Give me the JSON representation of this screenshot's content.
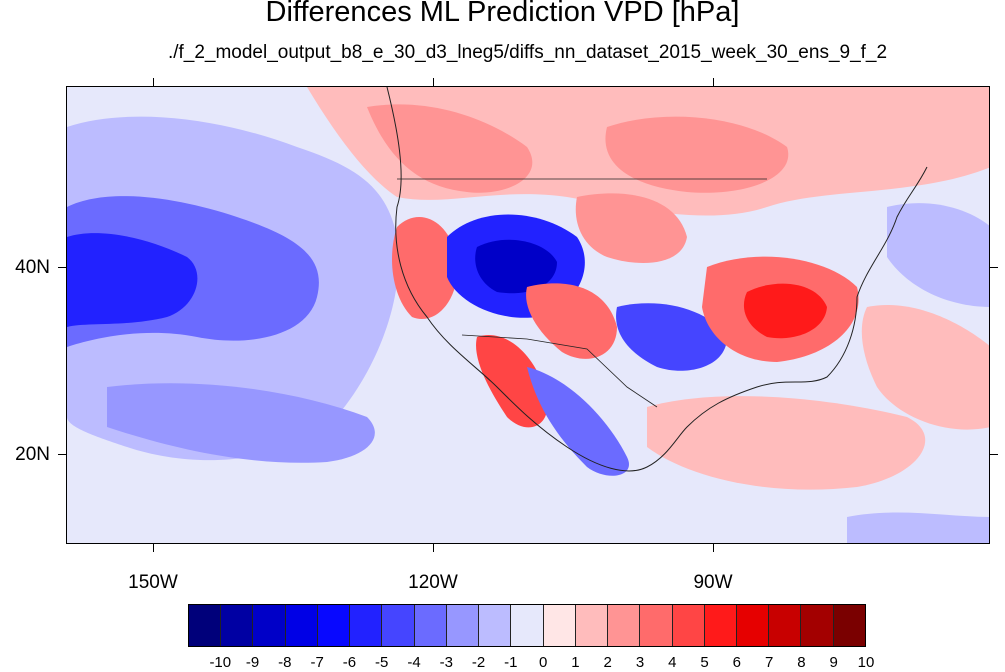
{
  "title": "Differences ML Prediction VPD [hPa]",
  "subtitle": "./f_2_model_output_b8_e_30_d3_lneg5/diffs_nn_dataset_2015_week_30_ens_9_f_2",
  "lat_labels": [
    "40N",
    "20N"
  ],
  "lon_labels": [
    "150W",
    "120W",
    "90W"
  ],
  "colorbar": {
    "labels": [
      "-10",
      "-9",
      "-8",
      "-7",
      "-6",
      "-5",
      "-4",
      "-3",
      "-2",
      "-1",
      "0",
      "1",
      "2",
      "3",
      "4",
      "5",
      "6",
      "7",
      "8",
      "9",
      "10"
    ],
    "colors": [
      "#00007a",
      "#0000a3",
      "#0000c8",
      "#0000e6",
      "#0808ff",
      "#2222ff",
      "#4545ff",
      "#6b6bff",
      "#9797ff",
      "#bcbcff",
      "#e6e8fb",
      "#ffe6e6",
      "#ffbcbc",
      "#ff9494",
      "#ff6b6b",
      "#ff4545",
      "#ff1a1a",
      "#e60000",
      "#c80000",
      "#a30000",
      "#7a0000"
    ]
  },
  "map": {
    "extent": {
      "lon_min": -160,
      "lon_max": -61,
      "lat_min": 10,
      "lat_max": 59
    },
    "background_color": "#e6e8fb",
    "anomaly_regions": [
      {
        "name": "pacific-dry-bias",
        "color": "#bcbcff"
      },
      {
        "name": "pacific-strong-dry-bias",
        "color": "#4545ff"
      },
      {
        "name": "great-basin-negative",
        "color": "#2222ff"
      },
      {
        "name": "southeast-us-positive",
        "color": "#ff4545"
      },
      {
        "name": "canada-positive",
        "color": "#ff9494"
      },
      {
        "name": "southwest-positive",
        "color": "#ff6b6b"
      },
      {
        "name": "texas-negative",
        "color": "#6b6bff"
      },
      {
        "name": "mexico-mixed",
        "color": "#9797ff"
      }
    ]
  }
}
